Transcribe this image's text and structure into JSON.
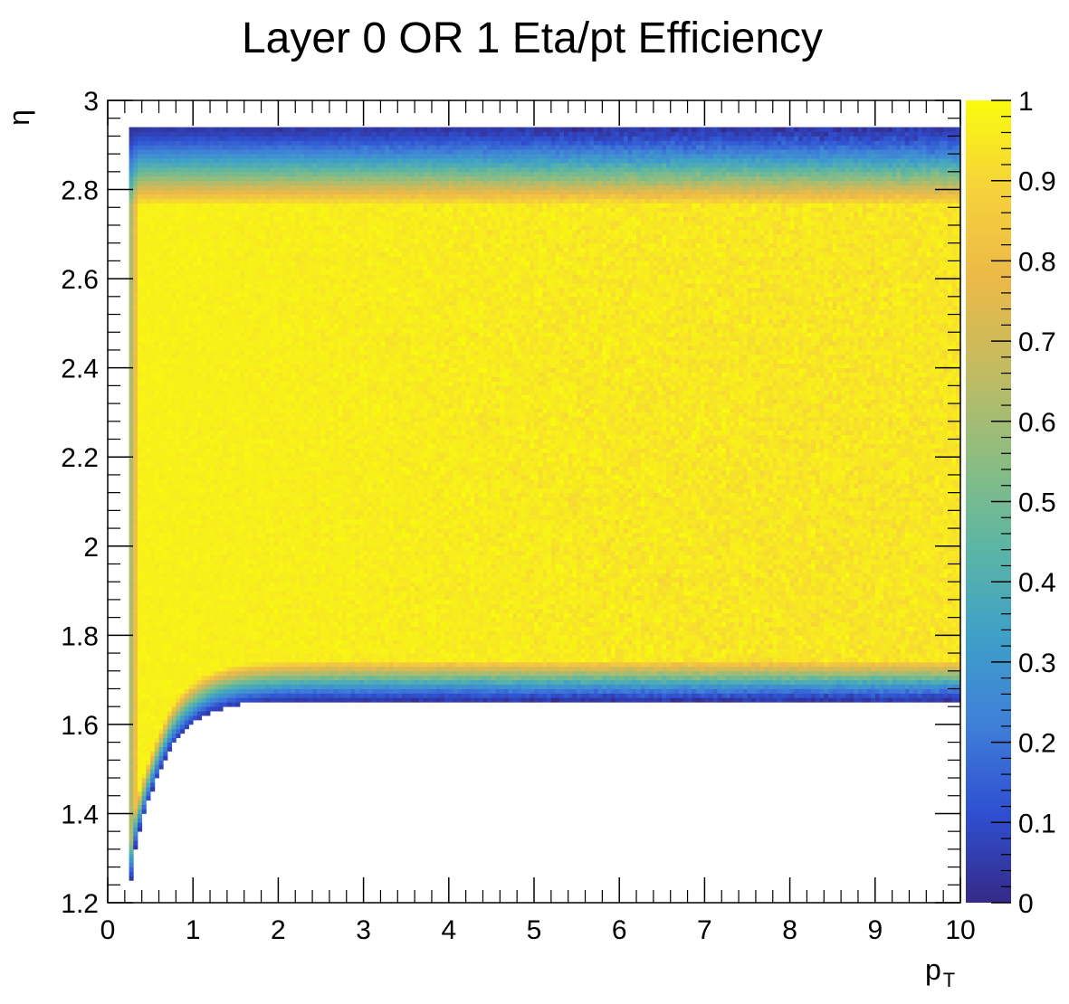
{
  "chart_data": {
    "type": "heatmap",
    "title": "Layer 0 OR 1 Eta/pt Efficiency",
    "xlabel": "p",
    "xlabel_subscript": "T",
    "ylabel": "η",
    "xlim": [
      0,
      10
    ],
    "ylim": [
      1.2,
      3
    ],
    "zlim": [
      0,
      1
    ],
    "x_ticks": [
      "0",
      "1",
      "2",
      "3",
      "4",
      "5",
      "6",
      "7",
      "8",
      "9",
      "10"
    ],
    "y_ticks": [
      "1.2",
      "1.4",
      "1.6",
      "1.8",
      "2",
      "2.2",
      "2.4",
      "2.6",
      "2.8",
      "3"
    ],
    "z_ticks": [
      "0",
      "0.1",
      "0.2",
      "0.3",
      "0.4",
      "0.5",
      "0.6",
      "0.7",
      "0.8",
      "0.9",
      "1"
    ],
    "colormap": [
      "#352a87",
      "#2f4fd1",
      "#3f7fd8",
      "#3fa0c8",
      "#5cb6a3",
      "#8ebd80",
      "#c3bb60",
      "#ecb948",
      "#f6d23a",
      "#f9fb0e"
    ],
    "efficiency_regions": [
      {
        "eta_range": [
          1.75,
          2.75
        ],
        "pt_range": [
          0.3,
          10
        ],
        "efficiency": 0.97
      },
      {
        "eta_range": [
          2.75,
          2.93
        ],
        "pt_range": [
          0.3,
          10
        ],
        "efficiency_range": [
          0.05,
          0.6
        ]
      },
      {
        "eta_range": [
          1.66,
          1.75
        ],
        "pt_range": [
          0.6,
          10
        ],
        "efficiency_range": [
          0.05,
          0.6
        ]
      }
    ]
  }
}
